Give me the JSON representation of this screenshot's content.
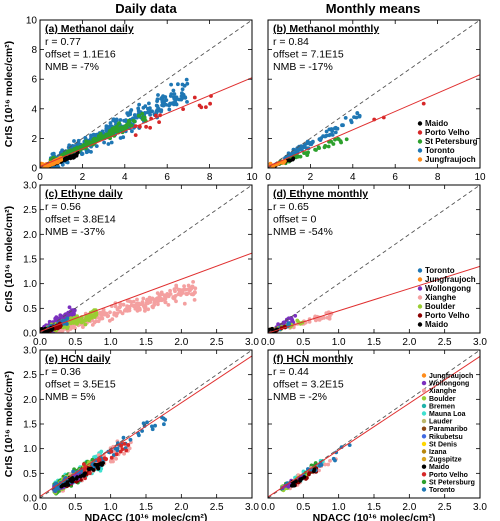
{
  "column_titles": [
    "Daily data",
    "Monthly means"
  ],
  "colors": {
    "diag": "#555555",
    "fit": "#e03030"
  },
  "chart_data": [
    {
      "type": "scatter",
      "panel_title": "(a) Methanol daily",
      "stats": [
        "r = 0.77",
        "offset = 1.1E16",
        "NMB = -7%"
      ],
      "ylabel": "CrIS (10¹⁶ molec/cm²)",
      "xlabel": "",
      "xlim": [
        0,
        10
      ],
      "ylim": [
        0,
        10
      ],
      "xticks": [
        "0",
        "2",
        "4",
        "6",
        "8",
        "10"
      ],
      "yticks": [
        "0",
        "2",
        "4",
        "6",
        "8",
        "10"
      ],
      "fit": {
        "slope": 0.6,
        "intercept": 0.1
      },
      "legend": [],
      "series": [
        {
          "color": "#1f77b4",
          "cloud": {
            "x": [
              0.5,
              7.0
            ],
            "slope": 0.75,
            "spread": 1.1,
            "n": 380
          }
        },
        {
          "color": "#2ca02c",
          "cloud": {
            "x": [
              0.5,
              5.0
            ],
            "slope": 0.7,
            "spread": 0.45,
            "n": 160
          }
        },
        {
          "color": "#d62728",
          "cloud": {
            "x": [
              4.5,
              9.0
            ],
            "slope": 0.58,
            "spread": 0.7,
            "n": 16
          }
        },
        {
          "color": "#000000",
          "cloud": {
            "x": [
              0.3,
              1.8
            ],
            "slope": 0.5,
            "spread": 0.2,
            "n": 60
          }
        },
        {
          "color": "#ff8c1a",
          "cloud": {
            "x": [
              0.05,
              1.0
            ],
            "slope": 0.6,
            "spread": 0.15,
            "n": 140
          }
        }
      ]
    },
    {
      "type": "scatter",
      "panel_title": "(b) Methanol monthly",
      "stats": [
        "r = 0.84",
        "offset = 7.1E15",
        "NMB = -17%"
      ],
      "ylabel": "",
      "xlabel": "",
      "xlim": [
        0,
        10
      ],
      "ylim": [
        0,
        10
      ],
      "xticks": [
        "0",
        "2",
        "4",
        "6",
        "8",
        "10"
      ],
      "yticks": [],
      "fit": {
        "slope": 0.62,
        "intercept": 0.1
      },
      "legend": [
        {
          "name": "Maido",
          "color": "#000000"
        },
        {
          "name": "Porto Velho",
          "color": "#d62728"
        },
        {
          "name": "St Petersburg",
          "color": "#2ca02c"
        },
        {
          "name": "Toronto",
          "color": "#1f77b4"
        },
        {
          "name": "Jungfraujoch",
          "color": "#ff8c1a"
        }
      ],
      "series": [
        {
          "color": "#1f77b4",
          "cloud": {
            "x": [
              0.8,
              4.5
            ],
            "slope": 0.82,
            "spread": 0.45,
            "n": 75
          }
        },
        {
          "color": "#2ca02c",
          "cloud": {
            "x": [
              0.5,
              4.0
            ],
            "slope": 0.55,
            "spread": 0.3,
            "n": 45
          }
        },
        {
          "color": "#d62728",
          "cloud": {
            "x": [
              5.0,
              7.5
            ],
            "slope": 0.62,
            "spread": 0.3,
            "n": 3
          }
        },
        {
          "color": "#000000",
          "cloud": {
            "x": [
              0.3,
              1.2
            ],
            "slope": 0.55,
            "spread": 0.15,
            "n": 14
          }
        },
        {
          "color": "#ff8c1a",
          "cloud": {
            "x": [
              0.1,
              0.8
            ],
            "slope": 0.6,
            "spread": 0.1,
            "n": 25
          }
        }
      ]
    },
    {
      "type": "scatter",
      "panel_title": "(c) Ethyne daily",
      "stats": [
        "r = 0.56",
        "offset = 3.8E14",
        "NMB = -37%"
      ],
      "ylabel": "CrIS (10¹⁶ molec/cm²)",
      "xlabel": "",
      "xlim": [
        0,
        3
      ],
      "ylim": [
        0,
        3
      ],
      "xticks": [
        "0.0",
        "0.5",
        "1.0",
        "1.5",
        "2.0",
        "2.5",
        "3.0"
      ],
      "yticks": [
        "0.0",
        "0.5",
        "1.0",
        "1.5",
        "2.0",
        "2.5",
        "3.0"
      ],
      "fit": {
        "slope": 0.53,
        "intercept": 0.03
      },
      "legend": [],
      "series": [
        {
          "color": "#f4a0a0",
          "cloud": {
            "x": [
              0.2,
              2.2
            ],
            "slope": 0.4,
            "spread": 0.22,
            "n": 300
          }
        },
        {
          "color": "#7b2fbf",
          "cloud": {
            "x": [
              0.05,
              0.5
            ],
            "slope": 0.85,
            "spread": 0.2,
            "n": 140
          }
        },
        {
          "color": "#9acd32",
          "cloud": {
            "x": [
              0.1,
              0.8
            ],
            "slope": 0.5,
            "spread": 0.15,
            "n": 110
          }
        },
        {
          "color": "#1f77b4",
          "cloud": {
            "x": [
              0.05,
              0.4
            ],
            "slope": 0.6,
            "spread": 0.08,
            "n": 90
          }
        },
        {
          "color": "#8b0000",
          "cloud": {
            "x": [
              0.05,
              0.3
            ],
            "slope": 0.5,
            "spread": 0.05,
            "n": 50
          }
        },
        {
          "color": "#000000",
          "cloud": {
            "x": [
              0.02,
              0.2
            ],
            "slope": 0.5,
            "spread": 0.04,
            "n": 40
          }
        }
      ]
    },
    {
      "type": "scatter",
      "panel_title": "(d) Ethyne monthly",
      "stats": [
        "r = 0.65",
        "offset = 0",
        "NMB = -54%"
      ],
      "ylabel": "",
      "xlabel": "",
      "xlim": [
        0,
        3
      ],
      "ylim": [
        0,
        3
      ],
      "xticks": [
        "0.0",
        "0.5",
        "1.0",
        "1.5",
        "2.0",
        "2.5",
        "3.0"
      ],
      "yticks": [],
      "fit": {
        "slope": 0.45,
        "intercept": 0.0
      },
      "legend": [
        {
          "name": "Toronto",
          "color": "#1f77b4"
        },
        {
          "name": "Jungfraujoch",
          "color": "#ff8c1a"
        },
        {
          "name": "Wollongong",
          "color": "#7b2fbf"
        },
        {
          "name": "Xianghe",
          "color": "#f4a0a0"
        },
        {
          "name": "Boulder",
          "color": "#9acd32"
        },
        {
          "name": "Porto Velho",
          "color": "#8b0000"
        },
        {
          "name": "Maido",
          "color": "#000000"
        }
      ],
      "series": [
        {
          "color": "#f4a0a0",
          "cloud": {
            "x": [
              0.3,
              0.9
            ],
            "slope": 0.42,
            "spread": 0.08,
            "n": 45
          }
        },
        {
          "color": "#7b2fbf",
          "cloud": {
            "x": [
              0.05,
              0.4
            ],
            "slope": 0.8,
            "spread": 0.1,
            "n": 35
          }
        },
        {
          "color": "#9acd32",
          "cloud": {
            "x": [
              0.1,
              0.5
            ],
            "slope": 0.5,
            "spread": 0.06,
            "n": 25
          }
        },
        {
          "color": "#1f77b4",
          "cloud": {
            "x": [
              0.05,
              0.3
            ],
            "slope": 0.55,
            "spread": 0.04,
            "n": 20
          }
        },
        {
          "color": "#ff8c1a",
          "cloud": {
            "x": [
              0.03,
              0.15
            ],
            "slope": 0.6,
            "spread": 0.03,
            "n": 12
          }
        },
        {
          "color": "#8b0000",
          "cloud": {
            "x": [
              0.05,
              0.25
            ],
            "slope": 0.5,
            "spread": 0.03,
            "n": 12
          }
        },
        {
          "color": "#000000",
          "cloud": {
            "x": [
              0.02,
              0.15
            ],
            "slope": 0.5,
            "spread": 0.02,
            "n": 10
          }
        }
      ]
    },
    {
      "type": "scatter",
      "panel_title": "(e) HCN daily",
      "stats": [
        "r = 0.36",
        "offset = 3.5E15",
        "NMB = 5%"
      ],
      "ylabel": "CrIS (10¹⁶ molec/cm²)",
      "xlabel": "NDACC (10¹⁶ molec/cm²)",
      "xlim": [
        0,
        3
      ],
      "ylim": [
        0,
        3
      ],
      "xticks": [
        "0.0",
        "0.5",
        "1.0",
        "1.5",
        "2.0",
        "2.5",
        "3.0"
      ],
      "yticks": [
        "0.0",
        "0.5",
        "1.0",
        "1.5",
        "2.0",
        "2.5",
        "3.0"
      ],
      "fit": {
        "slope": 0.95,
        "intercept": 0.03
      },
      "legend": [],
      "series": [
        {
          "color": "#40e0d0",
          "cloud": {
            "x": [
              0.2,
              0.9
            ],
            "slope": 0.9,
            "spread": 0.2,
            "n": 260
          }
        },
        {
          "color": "#2ca02c",
          "cloud": {
            "x": [
              0.2,
              0.8
            ],
            "slope": 0.9,
            "spread": 0.2,
            "n": 180
          }
        },
        {
          "color": "#f4a0a0",
          "cloud": {
            "x": [
              0.3,
              1.3
            ],
            "slope": 0.85,
            "spread": 0.25,
            "n": 90
          }
        },
        {
          "color": "#9acd32",
          "cloud": {
            "x": [
              0.2,
              0.7
            ],
            "slope": 0.9,
            "spread": 0.15,
            "n": 90
          }
        },
        {
          "color": "#8b0000",
          "cloud": {
            "x": [
              0.3,
              0.8
            ],
            "slope": 0.8,
            "spread": 0.15,
            "n": 70
          }
        },
        {
          "color": "#7b2fbf",
          "cloud": {
            "x": [
              0.2,
              0.6
            ],
            "slope": 0.9,
            "spread": 0.15,
            "n": 50
          }
        },
        {
          "color": "#1f77b4",
          "cloud": {
            "x": [
              0.2,
              1.8
            ],
            "slope": 0.9,
            "spread": 0.25,
            "n": 70
          }
        },
        {
          "color": "#d62728",
          "cloud": {
            "x": [
              0.6,
              1.3
            ],
            "slope": 0.85,
            "spread": 0.2,
            "n": 25
          }
        },
        {
          "color": "#000000",
          "cloud": {
            "x": [
              0.3,
              0.9
            ],
            "slope": 0.8,
            "spread": 0.1,
            "n": 40
          }
        }
      ]
    },
    {
      "type": "scatter",
      "panel_title": "(f) HCN monthly",
      "stats": [
        "r = 0.44",
        "offset = 3.2E15",
        "NMB = -2%"
      ],
      "ylabel": "",
      "xlabel": "NDACC (10¹⁶ molec/cm²)",
      "xlim": [
        0,
        3
      ],
      "ylim": [
        0,
        3
      ],
      "xticks": [
        "0.0",
        "0.5",
        "1.0",
        "1.5",
        "2.0",
        "2.5",
        "3.0"
      ],
      "yticks": [],
      "fit": {
        "slope": 0.95,
        "intercept": 0.02
      },
      "legend": [
        {
          "name": "Jungfraujoch",
          "color": "#ff8c1a"
        },
        {
          "name": "Wollongong",
          "color": "#7b2fbf"
        },
        {
          "name": "Xianghe",
          "color": "#f4a0a0"
        },
        {
          "name": "Boulder",
          "color": "#9acd32"
        },
        {
          "name": "Bremen",
          "color": "#20b2aa"
        },
        {
          "name": "Mauna Loa",
          "color": "#40e0d0"
        },
        {
          "name": "Lauder",
          "color": "#bdb76b"
        },
        {
          "name": "Paramaribo",
          "color": "#8b4513"
        },
        {
          "name": "Rikubetsu",
          "color": "#4169e1"
        },
        {
          "name": "St Denis",
          "color": "#ffd700"
        },
        {
          "name": "Izana",
          "color": "#b8860b"
        },
        {
          "name": "Zugspitze",
          "color": "#daa520"
        },
        {
          "name": "Maido",
          "color": "#000000"
        },
        {
          "name": "Porto Velho",
          "color": "#d62728"
        },
        {
          "name": "St Petersburg",
          "color": "#2ca02c"
        },
        {
          "name": "Toronto",
          "color": "#1f77b4"
        }
      ],
      "series": [
        {
          "color": "#40e0d0",
          "cloud": {
            "x": [
              0.2,
              0.8
            ],
            "slope": 0.9,
            "spread": 0.12,
            "n": 50
          }
        },
        {
          "color": "#2ca02c",
          "cloud": {
            "x": [
              0.2,
              0.7
            ],
            "slope": 0.9,
            "spread": 0.12,
            "n": 40
          }
        },
        {
          "color": "#f4a0a0",
          "cloud": {
            "x": [
              0.3,
              1.0
            ],
            "slope": 0.85,
            "spread": 0.15,
            "n": 25
          }
        },
        {
          "color": "#9acd32",
          "cloud": {
            "x": [
              0.2,
              0.6
            ],
            "slope": 0.9,
            "spread": 0.1,
            "n": 20
          }
        },
        {
          "color": "#8b0000",
          "cloud": {
            "x": [
              0.3,
              0.7
            ],
            "slope": 0.8,
            "spread": 0.1,
            "n": 20
          }
        },
        {
          "color": "#1f77b4",
          "cloud": {
            "x": [
              0.2,
              1.2
            ],
            "slope": 0.9,
            "spread": 0.15,
            "n": 15
          }
        },
        {
          "color": "#7b2fbf",
          "cloud": {
            "x": [
              0.2,
              0.5
            ],
            "slope": 0.9,
            "spread": 0.1,
            "n": 12
          }
        },
        {
          "color": "#000000",
          "cloud": {
            "x": [
              0.3,
              0.7
            ],
            "slope": 0.8,
            "spread": 0.08,
            "n": 12
          }
        }
      ]
    }
  ]
}
